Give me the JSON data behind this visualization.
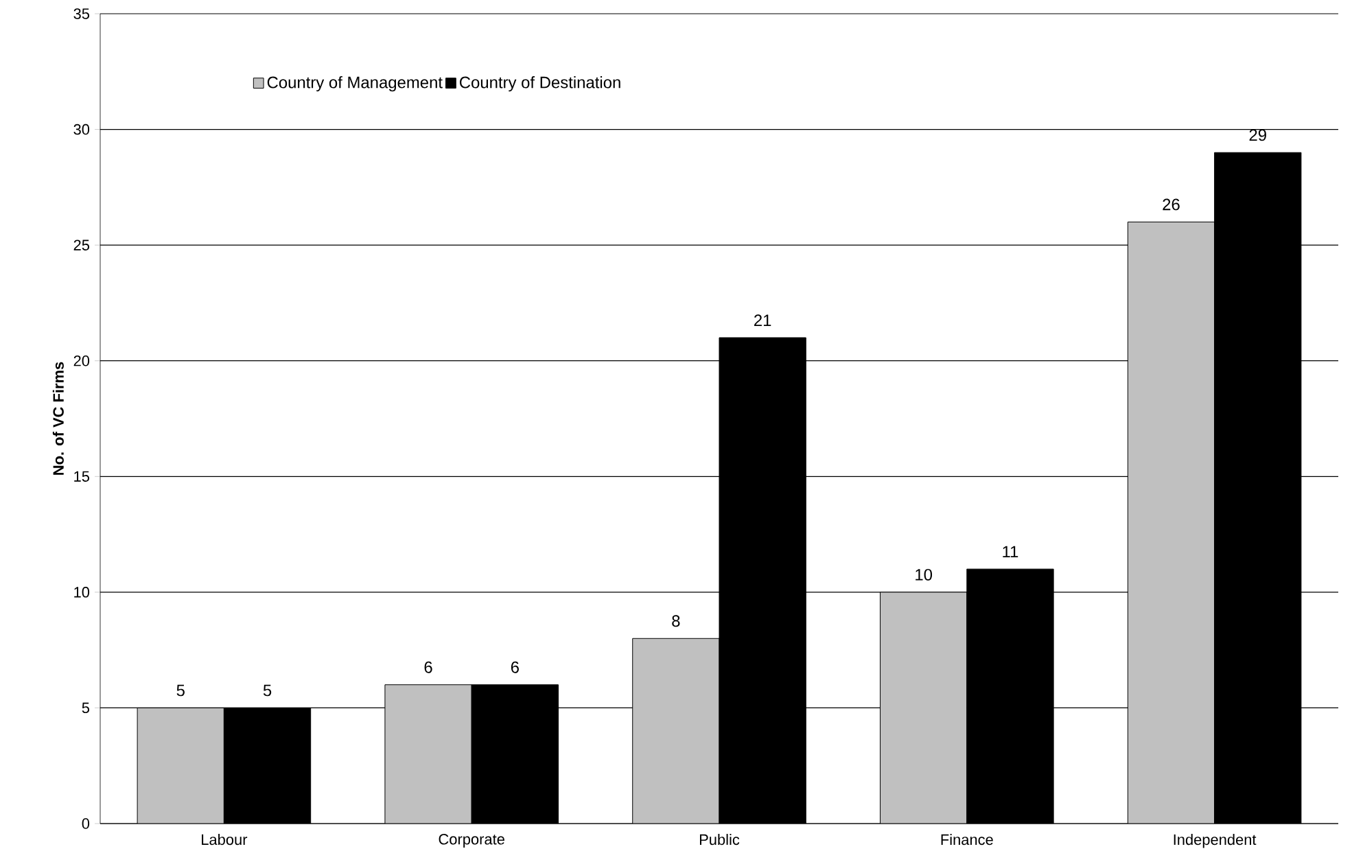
{
  "chart_data": {
    "type": "bar",
    "ylabel": "No. of VC Firms",
    "categories": [
      "Labour",
      "Corporate",
      "Public",
      "Finance",
      "Independent"
    ],
    "series": [
      {
        "name": "Country of Management",
        "color": "#c0c0c0",
        "values": [
          5,
          6,
          8,
          10,
          26
        ]
      },
      {
        "name": "Country of Destination",
        "color": "#000000",
        "values": [
          5,
          6,
          21,
          11,
          29
        ]
      }
    ],
    "ylim": [
      0,
      35
    ],
    "yticks": [
      0,
      5,
      10,
      15,
      20,
      25,
      30,
      35
    ],
    "grid": "y",
    "legend": "top left",
    "data_labels": true
  }
}
